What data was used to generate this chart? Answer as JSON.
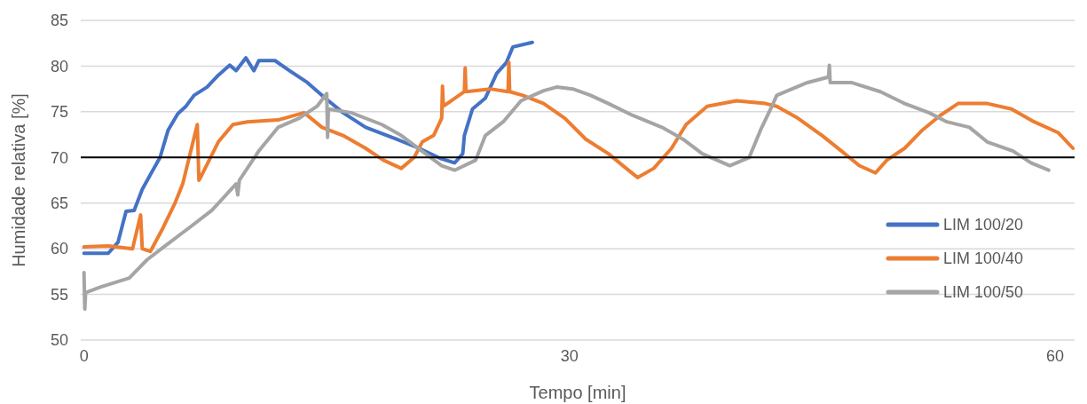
{
  "chart_data": {
    "type": "line",
    "xlabel": "Tempo [min]",
    "ylabel": "Humidade relativa [%]",
    "xlim": [
      -0.2,
      61.2
    ],
    "xticks": [
      0,
      30,
      60
    ],
    "ylim": [
      50,
      85
    ],
    "yticks": [
      50,
      55,
      60,
      65,
      70,
      75,
      80,
      85
    ],
    "grid": "y",
    "legend": "bottom right",
    "marker": "none",
    "line_style": "solid",
    "ref_lines": [
      {
        "axis": "y",
        "value": 70,
        "color": "#000000"
      }
    ],
    "series": [
      {
        "name": "LIM 100/20",
        "color": "#4472c4",
        "x": [
          0,
          1.5,
          2.1,
          2.6,
          3.1,
          3.6,
          4.1,
          4.7,
          5.2,
          5.8,
          6.3,
          6.8,
          7.6,
          8.3,
          9.0,
          9.4,
          10.0,
          10.5,
          10.8,
          11.8,
          12.7,
          13.8,
          14.9,
          16.0,
          17.4,
          19.3,
          20.7,
          22.0,
          22.9,
          23.4,
          23.5,
          24.0,
          24.8,
          25.5,
          26.1,
          26.5,
          27.7
        ],
        "values": [
          59.5,
          59.5,
          60.7,
          64.1,
          64.2,
          66.5,
          68.1,
          70.0,
          73.0,
          74.8,
          75.6,
          76.8,
          77.7,
          79.0,
          80.1,
          79.5,
          80.9,
          79.5,
          80.6,
          80.6,
          79.5,
          78.2,
          76.5,
          74.9,
          73.3,
          72.0,
          71.0,
          69.9,
          69.4,
          70.4,
          72.4,
          75.3,
          76.5,
          79.2,
          80.4,
          82.1,
          82.6
        ]
      },
      {
        "name": "LIM 100/40",
        "color": "#ed7d31",
        "x": [
          0,
          1.5,
          3.0,
          3.5,
          3.6,
          4.1,
          4.8,
          5.6,
          6.1,
          7.0,
          7.1,
          7.2,
          8.3,
          9.2,
          10.1,
          12.0,
          13.6,
          14.7,
          16.0,
          17.4,
          18.5,
          19.6,
          20.4,
          20.9,
          21.6,
          22.1,
          22.15,
          22.2,
          23.5,
          23.55,
          23.6,
          25.1,
          26.2,
          26.25,
          26.3,
          27.1,
          28.4,
          29.7,
          31.0,
          32.4,
          33.5,
          34.2,
          35.2,
          36.3,
          37.2,
          38.5,
          40.3,
          42.1,
          42.8,
          44.1,
          45.6,
          46.8,
          47.9,
          48.9,
          49.6,
          50.7,
          51.8,
          52.9,
          54.0,
          55.8,
          57.3,
          58.7,
          60.2,
          61.1
        ],
        "values": [
          60.2,
          60.3,
          60.0,
          63.7,
          60.0,
          59.7,
          62.0,
          64.9,
          67.1,
          73.6,
          67.5,
          67.8,
          71.7,
          73.6,
          73.9,
          74.1,
          74.9,
          73.3,
          72.4,
          71.0,
          69.7,
          68.8,
          70.0,
          71.7,
          72.4,
          74.3,
          77.8,
          75.6,
          77.2,
          79.8,
          77.2,
          77.5,
          77.2,
          80.4,
          77.2,
          76.8,
          75.9,
          74.3,
          72.0,
          70.4,
          68.8,
          67.8,
          68.8,
          71.0,
          73.6,
          75.6,
          76.2,
          75.9,
          75.6,
          74.3,
          72.4,
          70.7,
          69.1,
          68.3,
          69.7,
          71.0,
          73.0,
          74.6,
          75.9,
          75.9,
          75.3,
          73.9,
          72.7,
          71.0
        ]
      },
      {
        "name": "LIM 100/50",
        "color": "#a5a5a5",
        "x": [
          0,
          0.05,
          0.1,
          1.0,
          2.8,
          3.9,
          5.0,
          6.5,
          7.9,
          9.4,
          9.5,
          9.6,
          10.8,
          12.0,
          13.3,
          14.4,
          15.0,
          15.05,
          15.1,
          16.5,
          18.4,
          19.6,
          21.1,
          22.1,
          22.9,
          24.2,
          24.8,
          25.9,
          27.0,
          28.4,
          29.2,
          30.2,
          31.3,
          32.4,
          33.9,
          35.7,
          37.0,
          38.2,
          39.9,
          41.1,
          41.8,
          42.5,
          42.8,
          44.7,
          46.0,
          46.05,
          46.1,
          47.4,
          49.2,
          50.7,
          52.2,
          53.3,
          54.7,
          55.8,
          57.4,
          58.5,
          59.6
        ],
        "values": [
          57.4,
          53.4,
          55.2,
          55.8,
          56.8,
          58.8,
          60.3,
          62.3,
          64.2,
          67.1,
          65.9,
          67.5,
          70.7,
          73.3,
          74.3,
          75.6,
          77.0,
          72.2,
          75.3,
          74.9,
          73.6,
          72.4,
          70.4,
          69.1,
          68.6,
          69.7,
          72.4,
          73.9,
          76.2,
          77.3,
          77.7,
          77.5,
          76.8,
          75.9,
          74.6,
          73.3,
          72.0,
          70.4,
          69.1,
          70.0,
          73.0,
          75.6,
          76.8,
          78.2,
          78.8,
          80.1,
          78.2,
          78.2,
          77.2,
          75.9,
          74.9,
          73.9,
          73.3,
          71.7,
          70.7,
          69.4,
          68.6
        ]
      }
    ]
  }
}
